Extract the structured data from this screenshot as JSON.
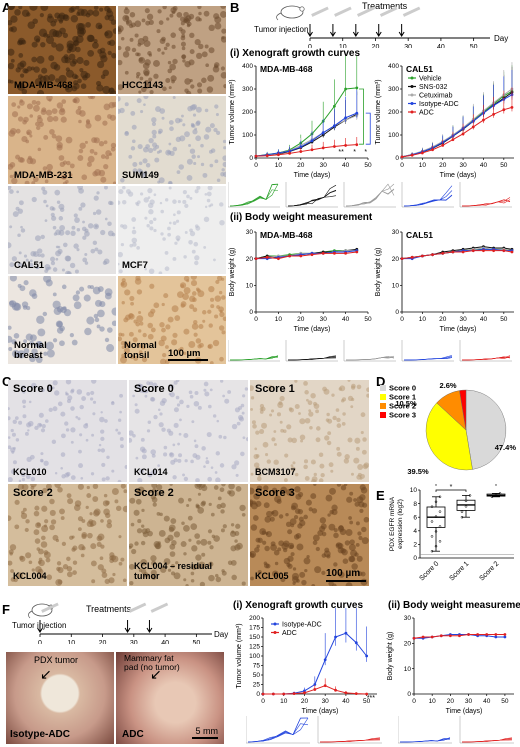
{
  "panels": {
    "A": {
      "label": "A",
      "tiles": [
        "MDA-MB-468",
        "HCC1143",
        "MDA-MB-231",
        "SUM149",
        "CAL51",
        "MCF7",
        "Normal breast",
        "Normal tonsil"
      ],
      "scalebar": "100 µm"
    },
    "B": {
      "label": "B",
      "timeline": {
        "injection_label": "Tumor injection",
        "treat_label": "Treatments",
        "day_label": "Day",
        "ticks": [
          "0",
          "10",
          "20",
          "30",
          "40",
          "50"
        ]
      },
      "section_i": "(i) Xenograft growth curves",
      "section_ii": "(ii) Body weight measurement",
      "legend": [
        "Vehicle",
        "SNS-032",
        "Cetuximab",
        "Isotype-ADC",
        "ADC"
      ],
      "sig": [
        "**",
        "*",
        "*"
      ]
    },
    "C": {
      "label": "C",
      "tiles": [
        {
          "score": "Score 0",
          "id": "KCL010"
        },
        {
          "score": "Score 0",
          "id": "KCL014"
        },
        {
          "score": "Score 1",
          "id": "BCM3107"
        },
        {
          "score": "Score 2",
          "id": "KCL004"
        },
        {
          "score": "Score 2",
          "id": "KCL004 – residual tumor"
        },
        {
          "score": "Score 3",
          "id": "KCL005"
        }
      ],
      "scalebar": "100 µm"
    },
    "D": {
      "label": "D"
    },
    "E": {
      "label": "E",
      "sig": [
        "*",
        "*",
        "*"
      ]
    },
    "F": {
      "label": "F",
      "timeline": {
        "injection_label": "Tumor injection",
        "treat_label": "Treatments",
        "day_label": "Day",
        "ticks": [
          "0",
          "10",
          "20",
          "30",
          "40",
          "50"
        ]
      },
      "photo_left": {
        "caption": "PDX tumor",
        "label": "Isotype-ADC"
      },
      "photo_right": {
        "caption": "Mammary fat pad (no tumor)",
        "label": "ADC",
        "scalebar": "5 mm"
      },
      "section_i": "(i) Xenograft growth curves",
      "section_ii": "(ii) Body weight measurement",
      "legend": [
        "Isotype-ADC",
        "ADC"
      ],
      "sig": "***"
    }
  },
  "colors": {
    "vehicle": "#2aa02a",
    "sns": "#111111",
    "cetuximab": "#aaaaaa",
    "isotype": "#2244dd",
    "adc": "#e02020"
  },
  "chart_data": [
    {
      "type": "line",
      "title": "MDA-MB-468",
      "xlabel": "Time (days)",
      "ylabel": "Tumor volume (mm³)",
      "xlim": [
        0,
        50
      ],
      "ylim": [
        0,
        400
      ],
      "xticks": [
        0,
        10,
        20,
        30,
        40,
        50
      ],
      "yticks": [
        0,
        100,
        200,
        300,
        400
      ],
      "x": [
        0,
        5,
        10,
        15,
        20,
        25,
        30,
        35,
        40,
        45
      ],
      "series": [
        {
          "name": "Vehicle",
          "color": "#2aa02a",
          "values": [
            8,
            15,
            22,
            35,
            65,
            105,
            160,
            225,
            300,
            305
          ]
        },
        {
          "name": "SNS-032",
          "color": "#111111",
          "values": [
            8,
            12,
            18,
            28,
            45,
            70,
            100,
            135,
            165,
            190
          ]
        },
        {
          "name": "Cetuximab",
          "color": "#aaaaaa",
          "values": [
            8,
            12,
            20,
            32,
            55,
            80,
            110,
            140,
            165,
            185
          ]
        },
        {
          "name": "Isotype-ADC",
          "color": "#2244dd",
          "values": [
            8,
            14,
            22,
            30,
            48,
            75,
            110,
            140,
            175,
            195
          ]
        },
        {
          "name": "ADC",
          "color": "#e02020",
          "values": [
            8,
            10,
            14,
            20,
            28,
            36,
            44,
            50,
            55,
            58
          ]
        }
      ]
    },
    {
      "type": "line",
      "title": "CAL51",
      "xlabel": "Time (days)",
      "ylabel": "Tumor volume (mm³)",
      "xlim": [
        0,
        55
      ],
      "ylim": [
        0,
        400
      ],
      "xticks": [
        0,
        10,
        20,
        30,
        40,
        50
      ],
      "yticks": [
        0,
        100,
        200,
        300,
        400
      ],
      "x": [
        0,
        5,
        10,
        15,
        20,
        25,
        30,
        35,
        40,
        45,
        50,
        54
      ],
      "series": [
        {
          "name": "Vehicle",
          "color": "#2aa02a",
          "values": [
            5,
            15,
            28,
            45,
            70,
            100,
            130,
            165,
            200,
            235,
            270,
            290
          ]
        },
        {
          "name": "SNS-032",
          "color": "#111111",
          "values": [
            5,
            14,
            26,
            42,
            65,
            95,
            125,
            160,
            195,
            230,
            260,
            285
          ]
        },
        {
          "name": "Cetuximab",
          "color": "#aaaaaa",
          "values": [
            5,
            16,
            30,
            48,
            72,
            100,
            132,
            168,
            205,
            240,
            275,
            300
          ]
        },
        {
          "name": "Isotype-ADC",
          "color": "#2244dd",
          "values": [
            5,
            14,
            27,
            44,
            68,
            96,
            128,
            160,
            195,
            228,
            255,
            275
          ]
        },
        {
          "name": "ADC",
          "color": "#e02020",
          "values": [
            5,
            12,
            22,
            36,
            55,
            80,
            105,
            135,
            165,
            190,
            210,
            220
          ]
        }
      ]
    },
    {
      "type": "line",
      "title": "MDA-MB-468",
      "xlabel": "Time (days)",
      "ylabel": "Body weight (g)",
      "xlim": [
        0,
        50
      ],
      "ylim": [
        0,
        30
      ],
      "xticks": [
        0,
        10,
        20,
        30,
        40,
        50
      ],
      "yticks": [
        0,
        10,
        20,
        30
      ],
      "x": [
        0,
        5,
        10,
        15,
        20,
        25,
        30,
        35,
        40,
        45
      ],
      "series": [
        {
          "name": "Vehicle",
          "color": "#2aa02a",
          "values": [
            20,
            21,
            21,
            21.5,
            22,
            22,
            22.5,
            23,
            23,
            23
          ]
        },
        {
          "name": "SNS-032",
          "color": "#111111",
          "values": [
            20,
            21,
            20.5,
            21,
            21.5,
            22,
            22.5,
            22.5,
            23,
            23.5
          ]
        },
        {
          "name": "Cetuximab",
          "color": "#aaaaaa",
          "values": [
            20,
            20.5,
            21,
            21,
            22,
            22,
            22,
            22.5,
            23,
            23
          ]
        },
        {
          "name": "Isotype-ADC",
          "color": "#2244dd",
          "values": [
            20,
            20,
            20.5,
            21,
            21.5,
            22,
            22,
            22.5,
            22.5,
            23
          ]
        },
        {
          "name": "ADC",
          "color": "#e02020",
          "values": [
            20,
            20.5,
            20,
            21,
            21,
            21.5,
            22,
            22,
            22,
            22.5
          ]
        }
      ]
    },
    {
      "type": "line",
      "title": "CAL51",
      "xlabel": "Time (days)",
      "ylabel": "Body weight (g)",
      "xlim": [
        0,
        55
      ],
      "ylim": [
        0,
        30
      ],
      "xticks": [
        0,
        10,
        20,
        30,
        40,
        50
      ],
      "yticks": [
        0,
        10,
        20,
        30
      ],
      "x": [
        0,
        5,
        10,
        15,
        20,
        25,
        30,
        35,
        40,
        45,
        50,
        54
      ],
      "series": [
        {
          "name": "Vehicle",
          "color": "#2aa02a",
          "values": [
            20,
            20.5,
            21,
            21.5,
            22,
            22.5,
            23,
            23.5,
            23.5,
            23.5,
            23.5,
            23
          ]
        },
        {
          "name": "SNS-032",
          "color": "#111111",
          "values": [
            20,
            20.5,
            21,
            21.5,
            22.5,
            23,
            23.5,
            24,
            24.5,
            24,
            24,
            23.5
          ]
        },
        {
          "name": "Cetuximab",
          "color": "#aaaaaa",
          "values": [
            20,
            20.5,
            21,
            21.5,
            22,
            22.5,
            23,
            23.5,
            24,
            23.5,
            23.5,
            23
          ]
        },
        {
          "name": "Isotype-ADC",
          "color": "#2244dd",
          "values": [
            20,
            20,
            21,
            21.5,
            22,
            22.5,
            23,
            23,
            23.5,
            23.5,
            23,
            23
          ]
        },
        {
          "name": "ADC",
          "color": "#e02020",
          "values": [
            20,
            20.5,
            21,
            21.5,
            22,
            22.5,
            22.5,
            23,
            23,
            23,
            23,
            22.5
          ]
        }
      ]
    },
    {
      "type": "pie",
      "labels": [
        "Score 0",
        "Score 1",
        "Score 2",
        "Score 3"
      ],
      "values": [
        47.4,
        39.5,
        10.5,
        2.6
      ],
      "value_labels": [
        "47.4%",
        "39.5%",
        "10.5%",
        "2.6%"
      ],
      "colors": [
        "#d9d9d9",
        "#ffff00",
        "#ff8c00",
        "#ff0000"
      ]
    },
    {
      "type": "box",
      "ylabel": "PDX EGFR mRNA expression (log2)",
      "categories": [
        "Score 0",
        "Score 1",
        "Score 2"
      ],
      "ylim": [
        0,
        10
      ],
      "yticks": [
        0,
        2,
        4,
        6,
        8,
        10
      ],
      "boxes": [
        {
          "min": 1,
          "q1": 4.5,
          "median": 6,
          "q3": 7.5,
          "max": 9
        },
        {
          "min": 6,
          "q1": 7,
          "median": 7.8,
          "q3": 8.5,
          "max": 9.2
        },
        {
          "min": 9,
          "q1": 9.1,
          "median": 9.2,
          "q3": 9.4,
          "max": 9.5
        }
      ]
    },
    {
      "type": "line",
      "xlabel": "Time (days)",
      "ylabel": "Tumor volume (mm³)",
      "xlim": [
        0,
        55
      ],
      "ylim": [
        0,
        200
      ],
      "xticks": [
        0,
        10,
        20,
        30,
        40,
        50
      ],
      "yticks": [
        0,
        25,
        50,
        75,
        100,
        125,
        150,
        175,
        200
      ],
      "x": [
        0,
        5,
        10,
        15,
        20,
        25,
        30,
        35,
        40,
        45,
        50
      ],
      "series": [
        {
          "name": "Isotype-ADC",
          "color": "#2244dd",
          "values": [
            0,
            0,
            0,
            2,
            8,
            25,
            90,
            150,
            160,
            135,
            100
          ]
        },
        {
          "name": "ADC",
          "color": "#e02020",
          "values": [
            0,
            0,
            0,
            1,
            3,
            12,
            22,
            10,
            3,
            1,
            0
          ]
        }
      ]
    },
    {
      "type": "line",
      "xlabel": "Time (days)",
      "ylabel": "Body weight (g)",
      "xlim": [
        0,
        55
      ],
      "ylim": [
        0,
        30
      ],
      "xticks": [
        0,
        10,
        20,
        30,
        40,
        50
      ],
      "yticks": [
        0,
        10,
        20,
        30
      ],
      "x": [
        0,
        5,
        10,
        15,
        20,
        25,
        30,
        35,
        40,
        45,
        50
      ],
      "series": [
        {
          "name": "Isotype-ADC",
          "color": "#2244dd",
          "values": [
            22,
            22,
            22.5,
            23,
            23.5,
            23.5,
            23.5,
            23,
            23,
            22.5,
            22.5
          ]
        },
        {
          "name": "ADC",
          "color": "#e02020",
          "values": [
            22,
            22.5,
            22.5,
            23,
            23,
            23,
            23.5,
            23.5,
            23.5,
            23.5,
            23.5
          ]
        }
      ]
    }
  ]
}
